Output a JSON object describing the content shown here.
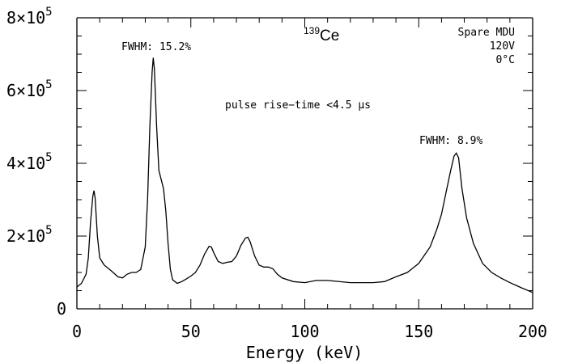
{
  "chart_data": {
    "type": "line",
    "title": "",
    "xlabel": "Energy (keV)",
    "ylabel": "",
    "xlim": [
      0,
      200
    ],
    "ylim": [
      0,
      800000
    ],
    "grid": false,
    "x_ticks": [
      "0",
      "50",
      "100",
      "150",
      "200"
    ],
    "y_tick_mantissa": [
      "0",
      "2×10",
      "4×10",
      "6×10",
      "8×10"
    ],
    "y_tick_exponent": "5",
    "series": [
      {
        "points": [
          [
            0,
            60000
          ],
          [
            2,
            70000
          ],
          [
            4,
            95000
          ],
          [
            5,
            140000
          ],
          [
            6,
            240000
          ],
          [
            7,
            310000
          ],
          [
            7.5,
            325000
          ],
          [
            8,
            305000
          ],
          [
            9,
            200000
          ],
          [
            10,
            140000
          ],
          [
            12,
            120000
          ],
          [
            15,
            105000
          ],
          [
            18,
            88000
          ],
          [
            20,
            85000
          ],
          [
            22,
            95000
          ],
          [
            24,
            100000
          ],
          [
            26,
            100000
          ],
          [
            28,
            108000
          ],
          [
            30,
            170000
          ],
          [
            31,
            300000
          ],
          [
            32,
            500000
          ],
          [
            33,
            650000
          ],
          [
            33.5,
            690000
          ],
          [
            34,
            660000
          ],
          [
            35,
            500000
          ],
          [
            36,
            380000
          ],
          [
            37,
            355000
          ],
          [
            38,
            330000
          ],
          [
            39,
            270000
          ],
          [
            40,
            180000
          ],
          [
            41,
            110000
          ],
          [
            42,
            80000
          ],
          [
            44,
            70000
          ],
          [
            46,
            75000
          ],
          [
            48,
            82000
          ],
          [
            50,
            90000
          ],
          [
            52,
            100000
          ],
          [
            54,
            120000
          ],
          [
            56,
            150000
          ],
          [
            58,
            172000
          ],
          [
            59,
            170000
          ],
          [
            60,
            155000
          ],
          [
            62,
            130000
          ],
          [
            64,
            125000
          ],
          [
            66,
            128000
          ],
          [
            68,
            130000
          ],
          [
            70,
            145000
          ],
          [
            72,
            175000
          ],
          [
            74,
            195000
          ],
          [
            75,
            197000
          ],
          [
            76,
            185000
          ],
          [
            78,
            145000
          ],
          [
            80,
            120000
          ],
          [
            82,
            115000
          ],
          [
            84,
            115000
          ],
          [
            86,
            110000
          ],
          [
            88,
            95000
          ],
          [
            90,
            85000
          ],
          [
            95,
            75000
          ],
          [
            100,
            72000
          ],
          [
            105,
            78000
          ],
          [
            110,
            78000
          ],
          [
            120,
            72000
          ],
          [
            130,
            72000
          ],
          [
            135,
            75000
          ],
          [
            140,
            88000
          ],
          [
            145,
            100000
          ],
          [
            150,
            125000
          ],
          [
            155,
            170000
          ],
          [
            158,
            220000
          ],
          [
            160,
            260000
          ],
          [
            162,
            320000
          ],
          [
            164,
            380000
          ],
          [
            165.5,
            420000
          ],
          [
            166.5,
            428000
          ],
          [
            167.5,
            415000
          ],
          [
            169,
            330000
          ],
          [
            171,
            250000
          ],
          [
            174,
            180000
          ],
          [
            178,
            125000
          ],
          [
            182,
            100000
          ],
          [
            186,
            85000
          ],
          [
            190,
            72000
          ],
          [
            195,
            58000
          ],
          [
            200,
            45000
          ]
        ]
      }
    ],
    "annotations": {
      "isotope_mass": "139",
      "isotope_symbol": "Ce",
      "config_line1": "Spare MDU",
      "config_line2": "120V",
      "config_line3": "0°C",
      "fwhm_left": "FWHM: 15.2%",
      "fwhm_right": "FWHM: 8.9%",
      "rise_time": "pulse rise−time <4.5 μs"
    }
  }
}
